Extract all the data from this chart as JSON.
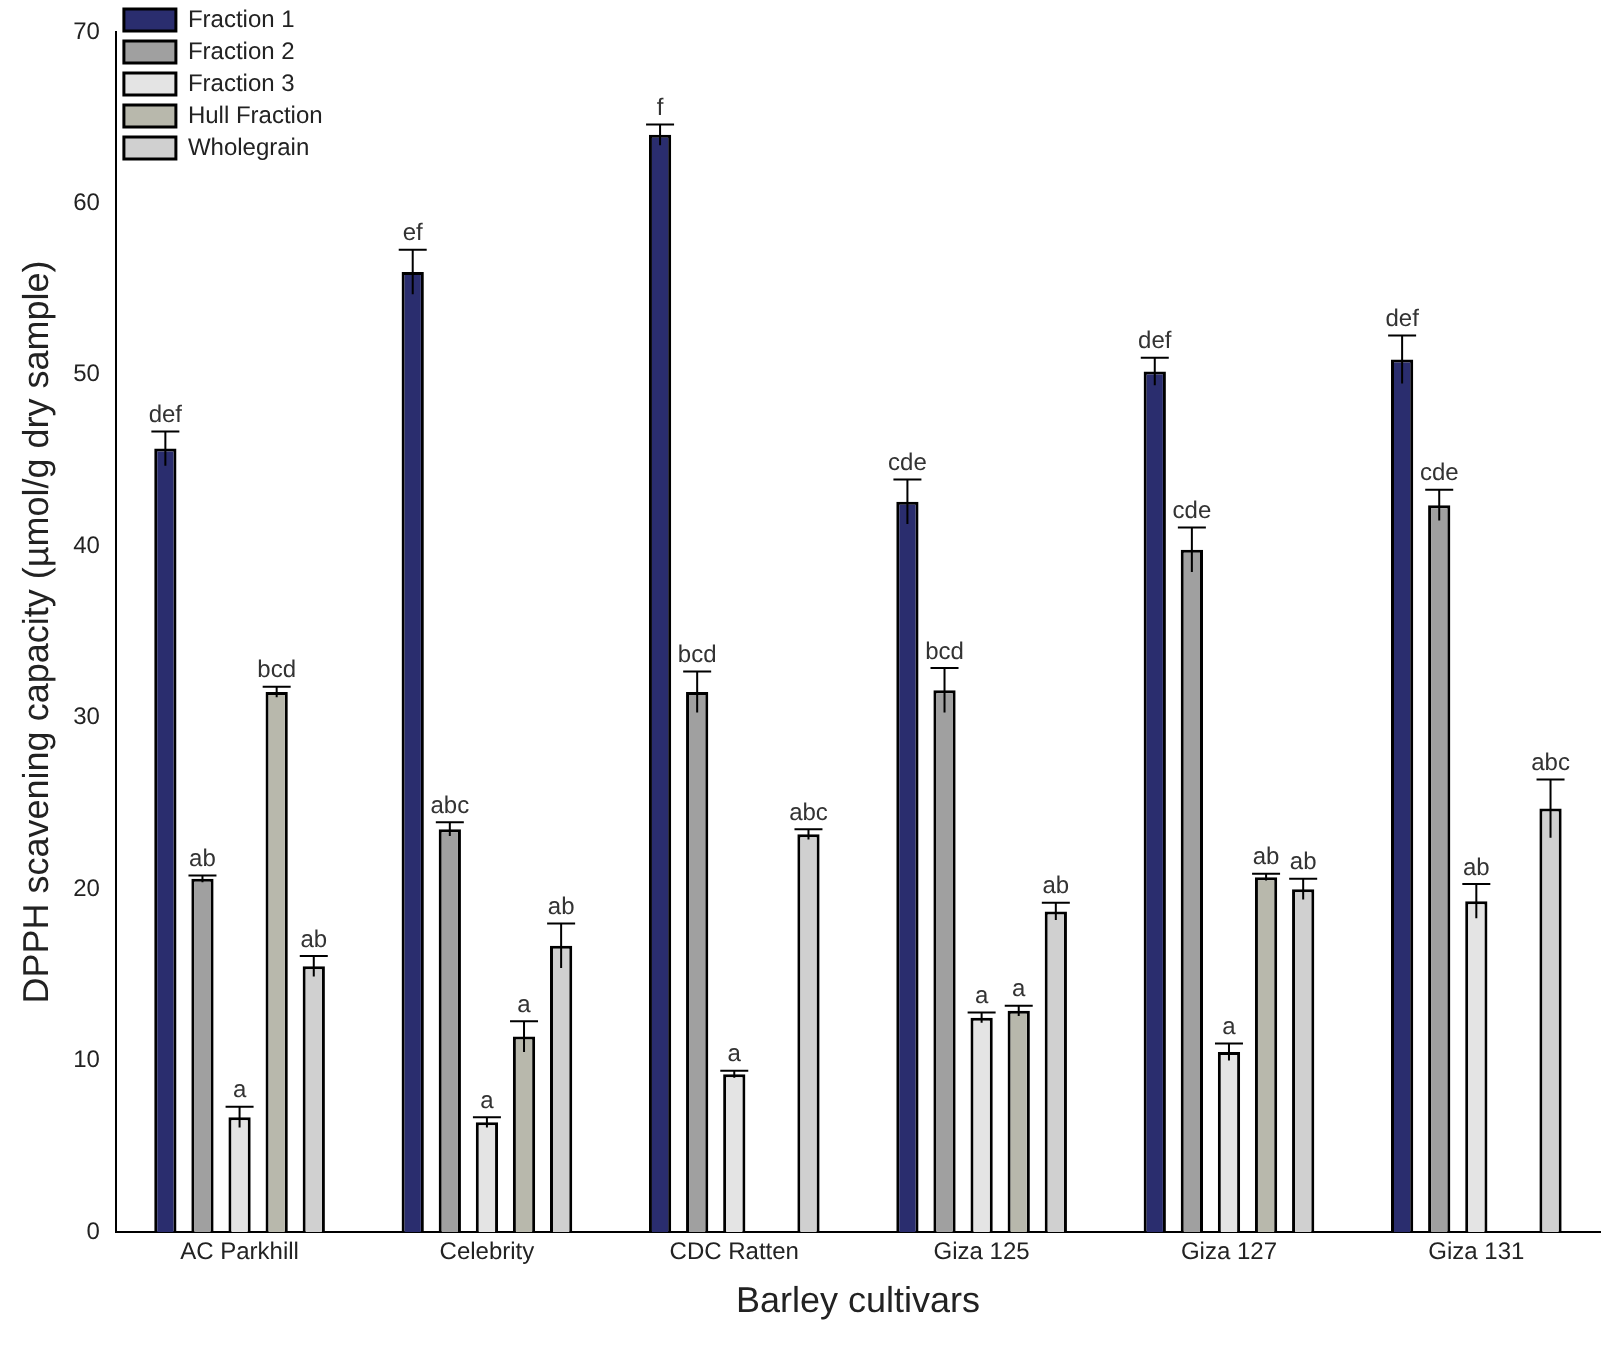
{
  "chart_data": {
    "type": "bar",
    "xlabel": "Barley cultivars",
    "ylabel": "DPPH scavening capacity (µmol/g dry sample)",
    "categories": [
      "AC Parkhill",
      "Celebrity",
      "CDC Ratten",
      "Giza 125",
      "Giza 127",
      "Giza 131"
    ],
    "series": [
      {
        "name": "Fraction 1",
        "color": "#2a2d6e",
        "values": [
          45.7,
          56.0,
          64.0,
          42.6,
          50.2,
          50.9
        ],
        "errors": [
          1.0,
          1.3,
          0.6,
          1.3,
          0.8,
          1.4
        ],
        "value_labels": [
          "def",
          "ef",
          "f",
          "cde",
          "def",
          "def"
        ]
      },
      {
        "name": "Fraction 2",
        "color": "#a0a0a0",
        "values": [
          20.6,
          23.5,
          31.5,
          31.6,
          39.8,
          42.4
        ],
        "errors": [
          0.2,
          0.4,
          1.2,
          1.3,
          1.3,
          0.9
        ],
        "value_labels": [
          "ab",
          "abc",
          "bcd",
          "bcd",
          "cde",
          "cde"
        ]
      },
      {
        "name": "Fraction 3",
        "color": "#e4e4e4",
        "values": [
          6.7,
          6.4,
          9.2,
          12.5,
          10.5,
          19.3
        ],
        "errors": [
          0.6,
          0.3,
          0.2,
          0.3,
          0.5,
          1.0
        ],
        "value_labels": [
          "a",
          "a",
          "a",
          "a",
          "a",
          "ab"
        ]
      },
      {
        "name": "Hull Fraction",
        "color": "#b8b8ac",
        "values": [
          31.5,
          11.4,
          null,
          12.9,
          20.7,
          null
        ],
        "errors": [
          0.3,
          0.9,
          null,
          0.3,
          0.2,
          null
        ],
        "value_labels": [
          "bcd",
          "a",
          null,
          "a",
          "ab",
          null
        ]
      },
      {
        "name": "Wholegrain",
        "color": "#d0d0d0",
        "values": [
          15.5,
          16.7,
          23.2,
          18.7,
          20.0,
          24.7
        ],
        "errors": [
          0.6,
          1.3,
          0.3,
          0.5,
          0.6,
          1.7
        ],
        "value_labels": [
          "ab",
          "ab",
          "abc",
          "ab",
          "ab",
          "abc"
        ]
      }
    ],
    "ylim": [
      0,
      70
    ],
    "yticks": [
      0,
      10,
      20,
      30,
      40,
      50,
      60,
      70
    ],
    "grid": false,
    "legend": "top left"
  }
}
